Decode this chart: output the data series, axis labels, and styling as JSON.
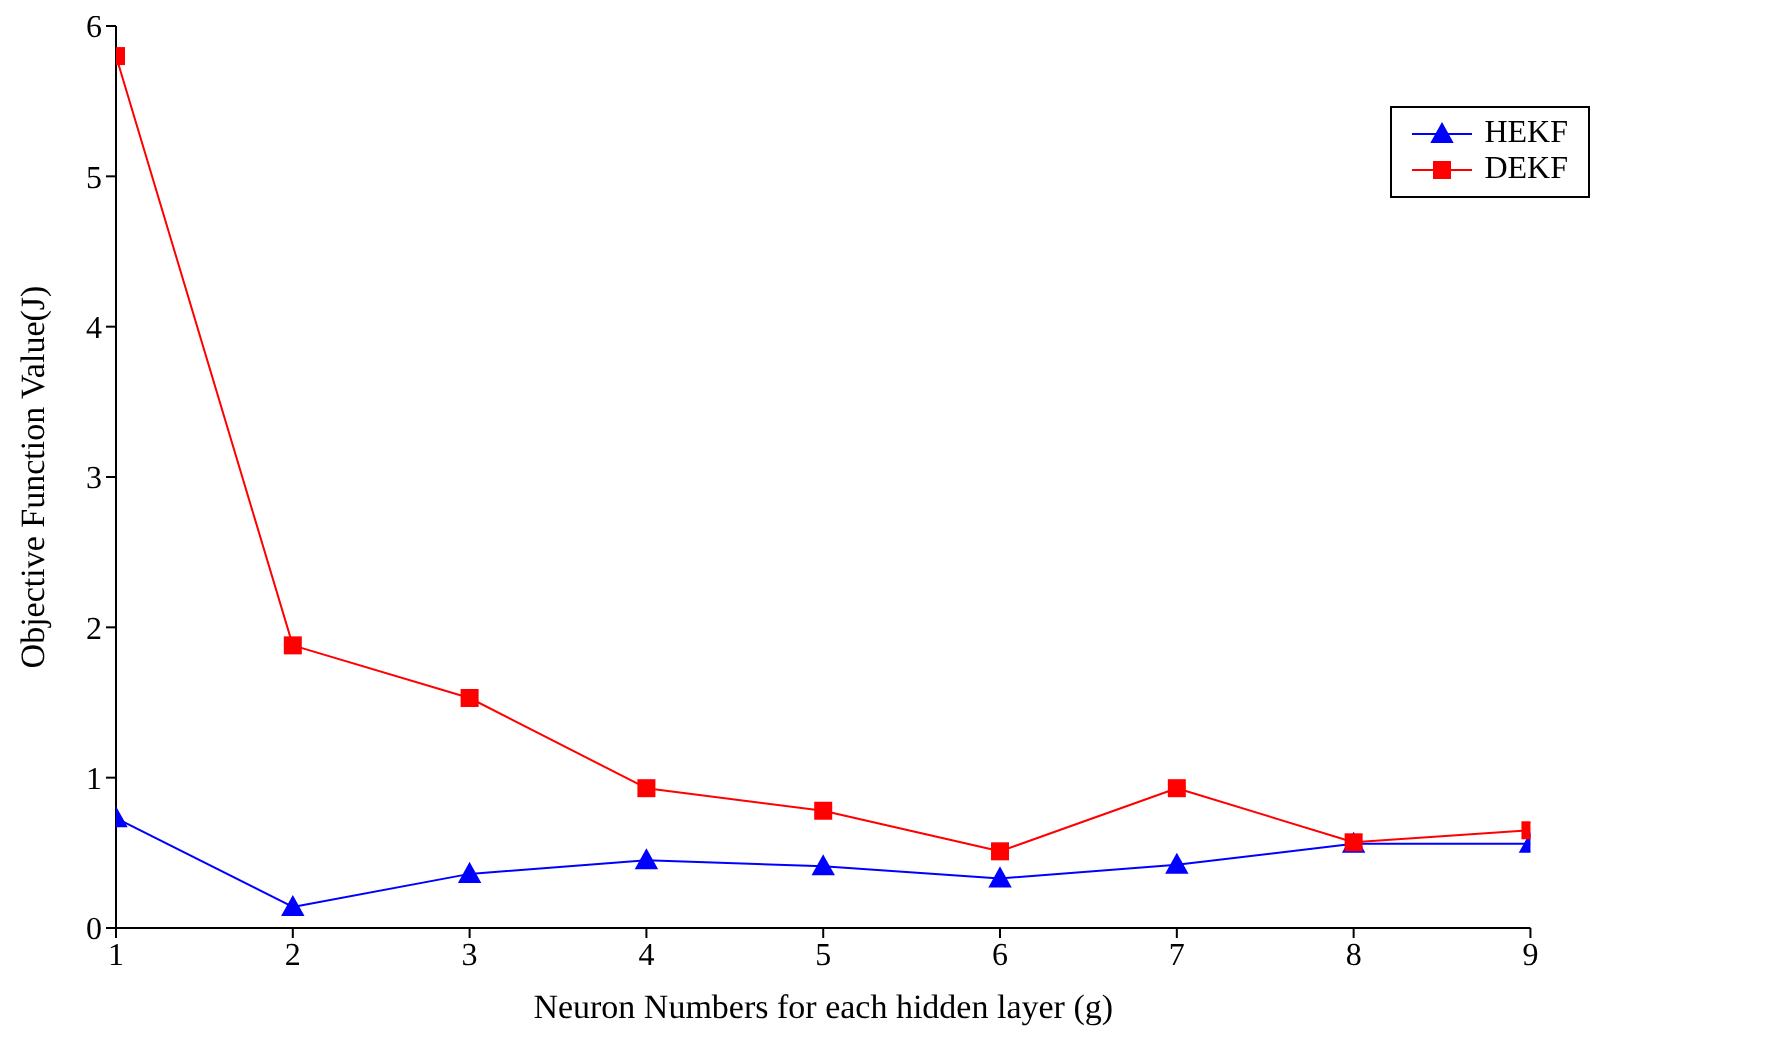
{
  "chart_data": {
    "type": "line",
    "xlabel": "Neuron Numbers for each hidden layer (g)",
    "ylabel": "Objective Function Value(J)",
    "x": [
      1,
      2,
      3,
      4,
      5,
      6,
      7,
      8,
      9
    ],
    "xlim": [
      1,
      9
    ],
    "xticks": [
      1,
      2,
      3,
      4,
      5,
      6,
      7,
      8,
      9
    ],
    "ylim": [
      0,
      6
    ],
    "yticks": [
      0,
      1,
      2,
      3,
      4,
      5,
      6
    ],
    "grid": false,
    "legend": "top right",
    "line_style": "solid",
    "series": [
      {
        "name": "HEKF",
        "color": "#0000ff",
        "marker": "triangle",
        "values": [
          0.73,
          0.14,
          0.36,
          0.45,
          0.41,
          0.33,
          0.42,
          0.56,
          0.56
        ]
      },
      {
        "name": "DEKF",
        "color": "#ff0000",
        "marker": "square",
        "values": [
          5.8,
          1.88,
          1.53,
          0.93,
          0.78,
          0.51,
          0.93,
          0.57,
          0.65
        ]
      }
    ]
  }
}
